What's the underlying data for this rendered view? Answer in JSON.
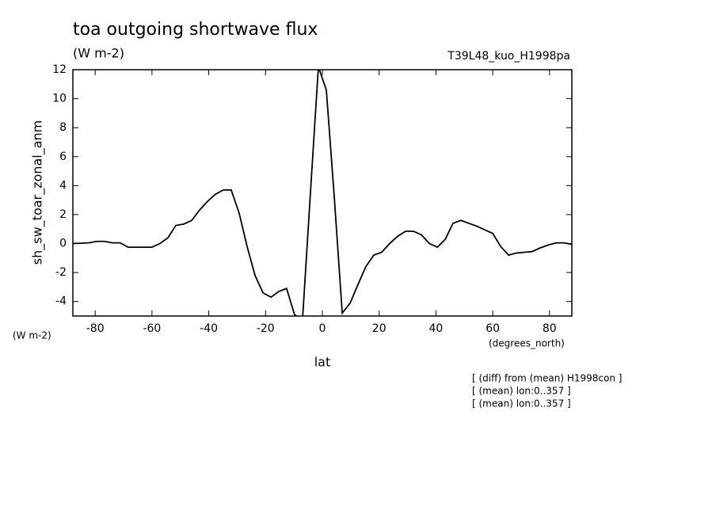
{
  "chart_data": {
    "type": "line",
    "title": "toa outgoing shortwave flux",
    "units": "(W m-2)",
    "run_label": "T39L48_kuo_H1998pa",
    "y_label": "sh_sw_toar_zonal_anm",
    "y_units": "(W m-2)",
    "x_units": "(degrees_north)",
    "x_label": "lat",
    "notes": [
      "[ (diff) from (mean) H1998con ]",
      "[ (mean) lon:0..357 ]",
      "[ (mean) lon:0..357 ]"
    ],
    "xlim": [
      -87.86,
      87.86
    ],
    "ylim": [
      -5,
      12
    ],
    "xticks": [
      -80,
      -60,
      -40,
      -20,
      0,
      20,
      40,
      60,
      80
    ],
    "yticks": [
      -4,
      -2,
      0,
      2,
      4,
      6,
      8,
      10,
      12
    ],
    "x": [
      -87.9,
      -82.3,
      -79.5,
      -76.7,
      -73.9,
      -71.2,
      -68.4,
      -65.6,
      -62.8,
      -60.0,
      -57.2,
      -54.4,
      -51.6,
      -48.8,
      -46.0,
      -43.3,
      -40.5,
      -37.7,
      -34.9,
      -32.1,
      -29.3,
      -26.5,
      -23.7,
      -20.9,
      -18.1,
      -15.3,
      -12.6,
      -9.8,
      -7.0,
      -4.2,
      -1.4,
      1.4,
      4.2,
      7.0,
      9.8,
      12.6,
      15.3,
      18.1,
      20.9,
      23.7,
      26.5,
      29.3,
      32.1,
      34.9,
      37.7,
      40.5,
      43.3,
      46.0,
      48.8,
      51.6,
      54.4,
      57.2,
      60.0,
      62.8,
      65.6,
      68.4,
      71.2,
      73.9,
      76.7,
      79.5,
      82.3,
      85.1,
      87.9
    ],
    "series": [
      {
        "color": "#000000",
        "values": [
          0.0,
          0.05,
          0.15,
          0.15,
          0.05,
          0.05,
          -0.25,
          -0.25,
          -0.25,
          -0.25,
          0.0,
          0.4,
          1.25,
          1.35,
          1.6,
          2.3,
          2.9,
          3.4,
          3.7,
          3.7,
          2.1,
          -0.2,
          -2.2,
          -3.4,
          -3.7,
          -3.3,
          -3.1,
          -4.9,
          -5.3,
          3.5,
          12.2,
          10.6,
          3.2,
          -4.8,
          -4.1,
          -2.8,
          -1.6,
          -0.8,
          -0.6,
          0.0,
          0.5,
          0.85,
          0.85,
          0.6,
          0.0,
          -0.25,
          0.3,
          1.4,
          1.6,
          1.4,
          1.2,
          0.95,
          0.7,
          -0.2,
          -0.8,
          -0.65,
          -0.6,
          -0.55,
          -0.3,
          -0.1,
          0.05,
          0.05,
          -0.05
        ]
      }
    ]
  }
}
